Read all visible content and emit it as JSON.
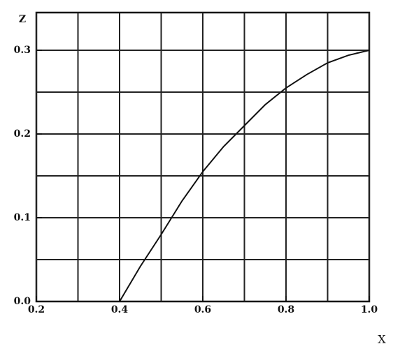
{
  "chart_data": {
    "type": "line",
    "x_label": "X",
    "y_label": "Z",
    "x": [
      0.4,
      0.45,
      0.5,
      0.55,
      0.6,
      0.65,
      0.7,
      0.75,
      0.8,
      0.85,
      0.9,
      0.95,
      1.0
    ],
    "series": [
      {
        "name": null,
        "color": "#111111",
        "values": [
          0,
          0.042,
          0.08,
          0.12,
          0.155,
          0.185,
          0.21,
          0.235,
          0.255,
          0.271,
          0.285,
          0.294,
          0.3
        ]
      }
    ],
    "xlim": [
      0.2,
      1.0
    ],
    "ylim": [
      0,
      0.345
    ],
    "xticks": [
      0.2,
      0.4,
      0.6,
      0.8,
      {
        "value": 1,
        "label": "1.0"
      }
    ],
    "yticks": [
      {
        "value": 0,
        "label": "0.0"
      },
      0.1,
      0.2,
      0.3
    ],
    "xgrid": [
      0.2,
      0.3,
      0.4,
      0.5,
      0.6,
      0.7,
      0.8,
      0.9,
      1.0
    ],
    "ygrid": [
      0.05,
      0.1,
      0.15,
      0.2,
      0.25,
      0.3
    ],
    "grid": true
  }
}
